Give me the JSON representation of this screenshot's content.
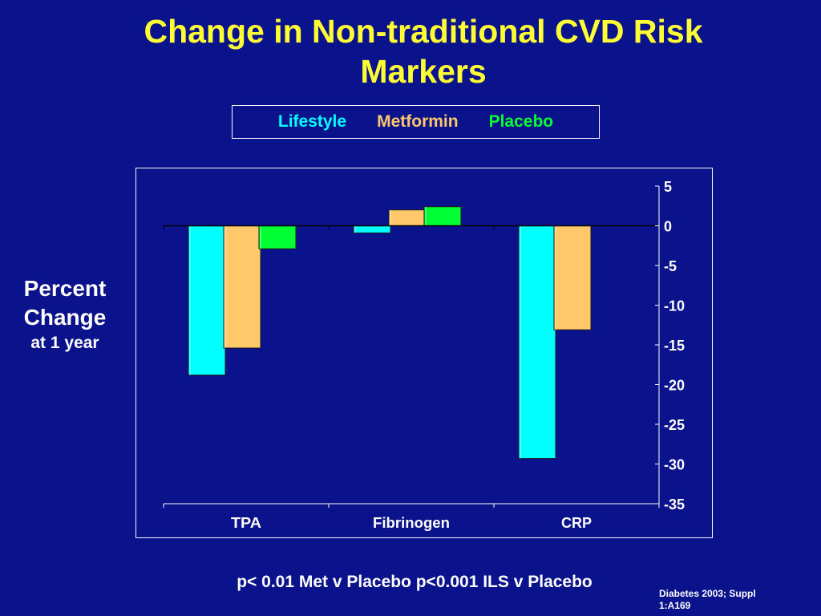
{
  "title": "Change in Non-traditional CVD Risk Markers",
  "ylabel_line1": "Percent",
  "ylabel_line2": "Change",
  "ylabel_line3": "at 1 year",
  "footnote": "p< 0.01 Met v Placebo    p<0.001 ILS v Placebo",
  "citation": "Diabetes 2003; Suppl 1:A169",
  "legend": [
    {
      "label": "Lifestyle",
      "color": "#00ffff"
    },
    {
      "label": "Metformin",
      "color": "#ffc96b"
    },
    {
      "label": "Placebo",
      "color": "#00ff33"
    }
  ],
  "chart_data": {
    "type": "bar",
    "categories": [
      "TPA",
      "Fibrinogen",
      "CRP"
    ],
    "series": [
      {
        "name": "Lifestyle",
        "values": [
          -18.8,
          -0.9,
          -29.3
        ],
        "color": "#00ffff"
      },
      {
        "name": "Metformin",
        "values": [
          -15.4,
          2.0,
          -13.1
        ],
        "color": "#ffc96b"
      },
      {
        "name": "Placebo",
        "values": [
          -2.9,
          2.4,
          null
        ],
        "color": "#00ff33"
      }
    ],
    "ylim": [
      -35,
      5
    ],
    "yticks": [
      5,
      0,
      -5,
      -10,
      -15,
      -20,
      -25,
      -30,
      -35
    ],
    "ytick_labels": [
      "5",
      "0",
      "-5",
      "-10",
      "-15",
      "-20",
      "-25",
      "-30",
      "-35"
    ],
    "yaxis_position": "right",
    "legend_position": "top",
    "grid": false
  }
}
